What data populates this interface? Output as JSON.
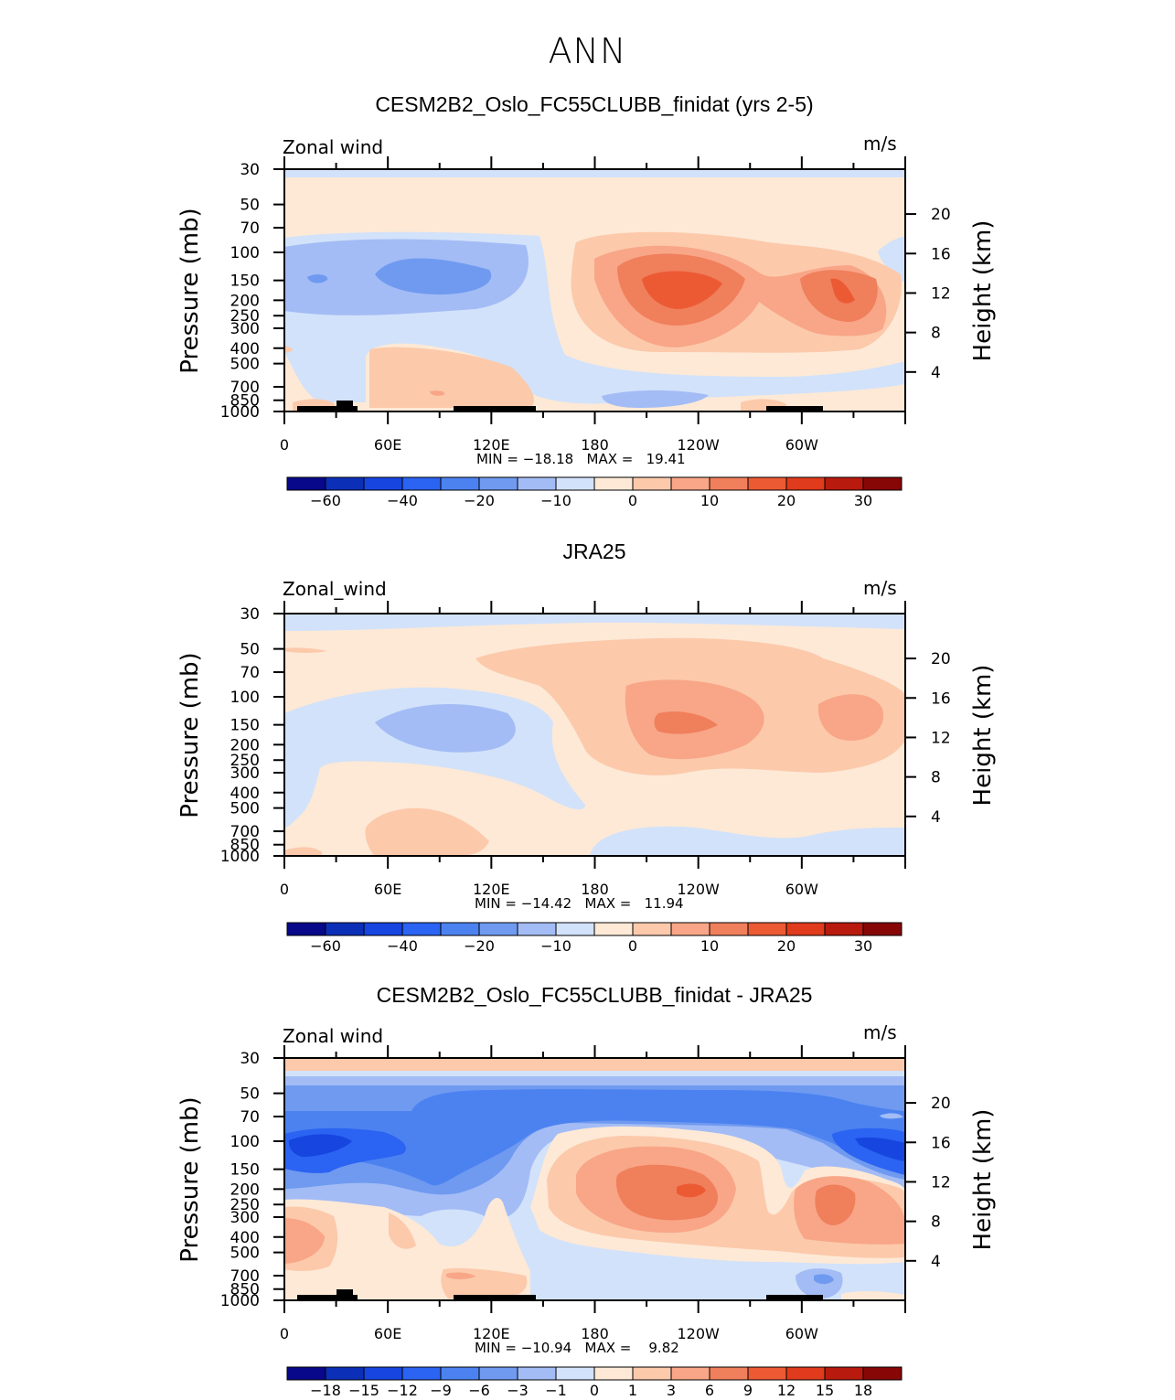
{
  "title": "ANN",
  "chart_data": [
    {
      "type": "contour",
      "title": "CESM2B2_Oslo_FC55CLUBB_finidat (yrs 2-5)",
      "field_label": "Zonal wind",
      "units": "m/s",
      "ylabel": "Pressure (mb)",
      "ylabel_right": "Height (km)",
      "x_ticks": [
        "0",
        "60E",
        "120E",
        "180",
        "120W",
        "60W"
      ],
      "y_ticks": [
        "30",
        "50",
        "70",
        "100",
        "150",
        "200",
        "250",
        "300",
        "400",
        "500",
        "700",
        "850",
        "1000"
      ],
      "height_ticks": [
        "20",
        "16",
        "12",
        "8",
        "4"
      ],
      "min": -18.18,
      "max": 19.41,
      "minmax_text": "MIN = −18.18   MAX =   19.41",
      "colorbar": {
        "colors": [
          "#08088a",
          "#0c2fb8",
          "#1645e0",
          "#2b63f2",
          "#4c82f0",
          "#6f9af0",
          "#a3bcf5",
          "#d2e2fa",
          "#fde9d6",
          "#fcc9ab",
          "#f8a687",
          "#f07f5c",
          "#ec5a33",
          "#df3b1c",
          "#b81a0e",
          "#870707"
        ],
        "labels": [
          "−60",
          "−40",
          "−20",
          "−10",
          "0",
          "10",
          "20",
          "30"
        ]
      }
    },
    {
      "type": "contour",
      "title": "JRA25",
      "field_label": "Zonal_wind",
      "units": "m/s",
      "ylabel": "Pressure (mb)",
      "ylabel_right": "Height (km)",
      "x_ticks": [
        "0",
        "60E",
        "120E",
        "180",
        "120W",
        "60W"
      ],
      "y_ticks": [
        "30",
        "50",
        "70",
        "100",
        "150",
        "200",
        "250",
        "300",
        "400",
        "500",
        "700",
        "850",
        "1000"
      ],
      "height_ticks": [
        "20",
        "16",
        "12",
        "8",
        "4"
      ],
      "min": -14.42,
      "max": 11.94,
      "minmax_text": "MIN = −14.42   MAX =   11.94",
      "colorbar": {
        "colors": [
          "#08088a",
          "#0c2fb8",
          "#1645e0",
          "#2b63f2",
          "#4c82f0",
          "#6f9af0",
          "#a3bcf5",
          "#d2e2fa",
          "#fde9d6",
          "#fcc9ab",
          "#f8a687",
          "#f07f5c",
          "#ec5a33",
          "#df3b1c",
          "#b81a0e",
          "#870707"
        ],
        "labels": [
          "−60",
          "−40",
          "−20",
          "−10",
          "0",
          "10",
          "20",
          "30"
        ]
      }
    },
    {
      "type": "contour",
      "title": "CESM2B2_Oslo_FC55CLUBB_finidat - JRA25",
      "field_label": "Zonal wind",
      "units": "m/s",
      "ylabel": "Pressure (mb)",
      "ylabel_right": "Height (km)",
      "x_ticks": [
        "0",
        "60E",
        "120E",
        "180",
        "120W",
        "60W"
      ],
      "y_ticks": [
        "30",
        "50",
        "70",
        "100",
        "150",
        "200",
        "250",
        "300",
        "400",
        "500",
        "700",
        "850",
        "1000"
      ],
      "height_ticks": [
        "20",
        "16",
        "12",
        "8",
        "4"
      ],
      "min": -10.94,
      "max": 9.82,
      "minmax_text": "MIN = −10.94   MAX =    9.82",
      "colorbar": {
        "colors": [
          "#08088a",
          "#0c2fb8",
          "#1645e0",
          "#2b63f2",
          "#4c82f0",
          "#6f9af0",
          "#a3bcf5",
          "#d2e2fa",
          "#fde9d6",
          "#fcc9ab",
          "#f8a687",
          "#f07f5c",
          "#ec5a33",
          "#df3b1c",
          "#b81a0e",
          "#870707"
        ],
        "labels": [
          "−18",
          "−15",
          "−12",
          "−9",
          "−6",
          "−3",
          "−1",
          "0",
          "1",
          "3",
          "6",
          "9",
          "12",
          "15",
          "18"
        ]
      }
    }
  ]
}
